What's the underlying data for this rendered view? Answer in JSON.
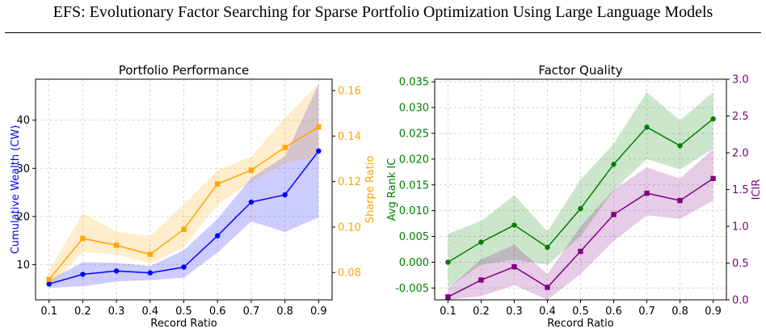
{
  "page": {
    "header_title": "EFS: Evolutionary Factor Searching for Sparse Portfolio Optimization Using Large Language Models"
  },
  "chart_data": [
    {
      "type": "line",
      "title": "Portfolio Performance",
      "xlabel": "Record Ratio",
      "ylabel_left": "Cumulative Wealth (CW)",
      "ylabel_right": "Sharpe Ratio",
      "x": [
        0.1,
        0.2,
        0.3,
        0.4,
        0.5,
        0.6,
        0.7,
        0.8,
        0.9
      ],
      "x_ticks": [
        "0.1",
        "0.2",
        "0.3",
        "0.4",
        "0.5",
        "0.6",
        "0.7",
        "0.8",
        "0.9"
      ],
      "ylim_left": [
        2.7,
        48.5
      ],
      "yticks_left": [
        "10",
        "20",
        "30",
        "40"
      ],
      "ylim_right": [
        0.068,
        0.165
      ],
      "yticks_right": [
        "0.08",
        "0.10",
        "0.12",
        "0.14",
        "0.16"
      ],
      "grid": true,
      "series": [
        {
          "axis": "left",
          "color": "#0000ff",
          "marker": "circle",
          "values": [
            6.0,
            8.0,
            8.7,
            8.3,
            9.5,
            16.0,
            23.0,
            24.5,
            33.6
          ],
          "lower": [
            5.2,
            5.5,
            6.5,
            6.8,
            7.3,
            12.5,
            19.0,
            16.8,
            19.8
          ],
          "upper": [
            6.8,
            10.5,
            10.4,
            9.7,
            13.0,
            19.5,
            28.0,
            32.5,
            47.5
          ]
        },
        {
          "axis": "right",
          "color": "#ffa500",
          "marker": "square",
          "values": [
            0.077,
            0.095,
            0.092,
            0.088,
            0.099,
            0.119,
            0.125,
            0.135,
            0.144
          ],
          "lower": [
            0.073,
            0.089,
            0.088,
            0.084,
            0.091,
            0.11,
            0.12,
            0.128,
            0.131
          ],
          "upper": [
            0.081,
            0.106,
            0.098,
            0.096,
            0.11,
            0.125,
            0.131,
            0.148,
            0.163
          ]
        }
      ]
    },
    {
      "type": "line",
      "title": "Factor Quality",
      "xlabel": "Record Ratio",
      "ylabel_left": "Avg Rank IC",
      "ylabel_right": "ICIR",
      "x": [
        0.1,
        0.2,
        0.3,
        0.4,
        0.5,
        0.6,
        0.7,
        0.8,
        0.9
      ],
      "x_ticks": [
        "0.1",
        "0.2",
        "0.3",
        "0.4",
        "0.5",
        "0.6",
        "0.7",
        "0.8",
        "0.9"
      ],
      "ylim_left": [
        -0.0073,
        0.0355
      ],
      "yticks_left": [
        "0.035",
        "0.030",
        "0.025",
        "0.020",
        "0.015",
        "0.010",
        "0.005",
        "0.000",
        "-0.005"
      ],
      "ylim_right": [
        0.0,
        3.0
      ],
      "yticks_right": [
        "3.0",
        "2.5",
        "2.0",
        "1.5",
        "1.0",
        "0.5",
        "0.0"
      ],
      "grid": true,
      "series": [
        {
          "axis": "left",
          "color": "#008000",
          "marker": "circle",
          "values": [
            0.0,
            0.0039,
            0.0072,
            0.0029,
            0.0104,
            0.019,
            0.0262,
            0.0226,
            0.0278
          ],
          "lower": [
            -0.005,
            -0.0005,
            0.0005,
            -0.0005,
            0.005,
            0.014,
            0.02,
            0.018,
            0.022
          ],
          "upper": [
            0.0055,
            0.008,
            0.013,
            0.006,
            0.016,
            0.023,
            0.033,
            0.0275,
            0.033
          ]
        },
        {
          "axis": "right",
          "color": "#800080",
          "marker": "square",
          "values": [
            0.04,
            0.27,
            0.45,
            0.17,
            0.66,
            1.16,
            1.45,
            1.35,
            1.65
          ],
          "lower": [
            0.0,
            0.05,
            0.2,
            0.0,
            0.35,
            0.8,
            1.15,
            1.1,
            1.35
          ],
          "upper": [
            0.15,
            0.55,
            0.75,
            0.35,
            1.0,
            1.5,
            1.8,
            1.65,
            2.05
          ]
        }
      ]
    }
  ]
}
